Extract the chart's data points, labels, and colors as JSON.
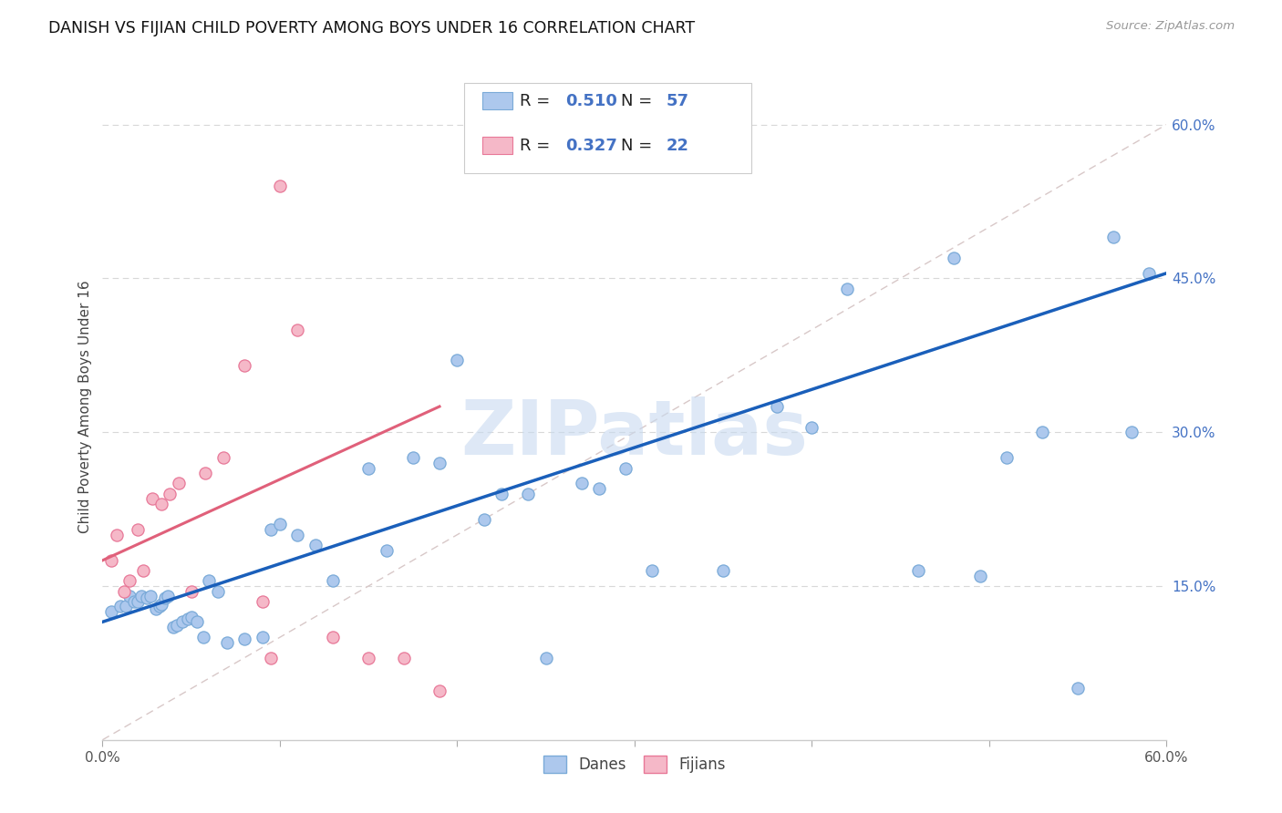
{
  "title": "DANISH VS FIJIAN CHILD POVERTY AMONG BOYS UNDER 16 CORRELATION CHART",
  "source": "Source: ZipAtlas.com",
  "ylabel": "Child Poverty Among Boys Under 16",
  "xlim": [
    0.0,
    0.6
  ],
  "ylim": [
    0.0,
    0.65
  ],
  "xticks": [
    0.0,
    0.1,
    0.2,
    0.3,
    0.4,
    0.5,
    0.6
  ],
  "xticklabels": [
    "0.0%",
    "",
    "",
    "",
    "",
    "",
    "60.0%"
  ],
  "yticks_right": [
    0.15,
    0.3,
    0.45,
    0.6
  ],
  "ytick_labels_right": [
    "15.0%",
    "30.0%",
    "45.0%",
    "60.0%"
  ],
  "danes_color": "#adc8ed",
  "fijians_color": "#f5b8c8",
  "danes_edge": "#7aaad8",
  "fijians_edge": "#e87898",
  "regression_blue": "#1a5fba",
  "regression_pink": "#e0607a",
  "diagonal_color": "#d8c8c8",
  "diagonal_linestyle": [
    6,
    4
  ],
  "R_color": "#4472c4",
  "N_color": "#4472c4",
  "watermark": "ZIPatlas",
  "watermark_color": "#c8daf0",
  "grid_color": "#d8d8d8",
  "danes_x": [
    0.005,
    0.01,
    0.013,
    0.015,
    0.018,
    0.02,
    0.022,
    0.025,
    0.027,
    0.03,
    0.032,
    0.033,
    0.035,
    0.037,
    0.04,
    0.042,
    0.045,
    0.048,
    0.05,
    0.053,
    0.057,
    0.06,
    0.065,
    0.07,
    0.08,
    0.09,
    0.095,
    0.1,
    0.11,
    0.12,
    0.13,
    0.15,
    0.16,
    0.175,
    0.19,
    0.2,
    0.215,
    0.225,
    0.24,
    0.25,
    0.27,
    0.28,
    0.295,
    0.31,
    0.35,
    0.38,
    0.4,
    0.42,
    0.46,
    0.48,
    0.495,
    0.51,
    0.53,
    0.55,
    0.57,
    0.58,
    0.59
  ],
  "danes_y": [
    0.125,
    0.13,
    0.13,
    0.14,
    0.135,
    0.135,
    0.14,
    0.138,
    0.14,
    0.128,
    0.13,
    0.132,
    0.138,
    0.14,
    0.11,
    0.112,
    0.115,
    0.118,
    0.12,
    0.115,
    0.1,
    0.155,
    0.145,
    0.095,
    0.098,
    0.1,
    0.205,
    0.21,
    0.2,
    0.19,
    0.155,
    0.265,
    0.185,
    0.275,
    0.27,
    0.37,
    0.215,
    0.24,
    0.24,
    0.08,
    0.25,
    0.245,
    0.265,
    0.165,
    0.165,
    0.325,
    0.305,
    0.44,
    0.165,
    0.47,
    0.16,
    0.275,
    0.3,
    0.05,
    0.49,
    0.3,
    0.455
  ],
  "fijians_x": [
    0.005,
    0.008,
    0.012,
    0.015,
    0.02,
    0.023,
    0.028,
    0.033,
    0.038,
    0.043,
    0.05,
    0.058,
    0.068,
    0.08,
    0.09,
    0.095,
    0.1,
    0.11,
    0.13,
    0.15,
    0.17,
    0.19
  ],
  "fijians_y": [
    0.175,
    0.2,
    0.145,
    0.155,
    0.205,
    0.165,
    0.235,
    0.23,
    0.24,
    0.25,
    0.145,
    0.26,
    0.275,
    0.365,
    0.135,
    0.08,
    0.54,
    0.4,
    0.1,
    0.08,
    0.08,
    0.048
  ],
  "blue_line_x": [
    0.0,
    0.6
  ],
  "blue_line_y": [
    0.115,
    0.455
  ],
  "pink_line_x": [
    0.0,
    0.19
  ],
  "pink_line_y": [
    0.175,
    0.325
  ]
}
